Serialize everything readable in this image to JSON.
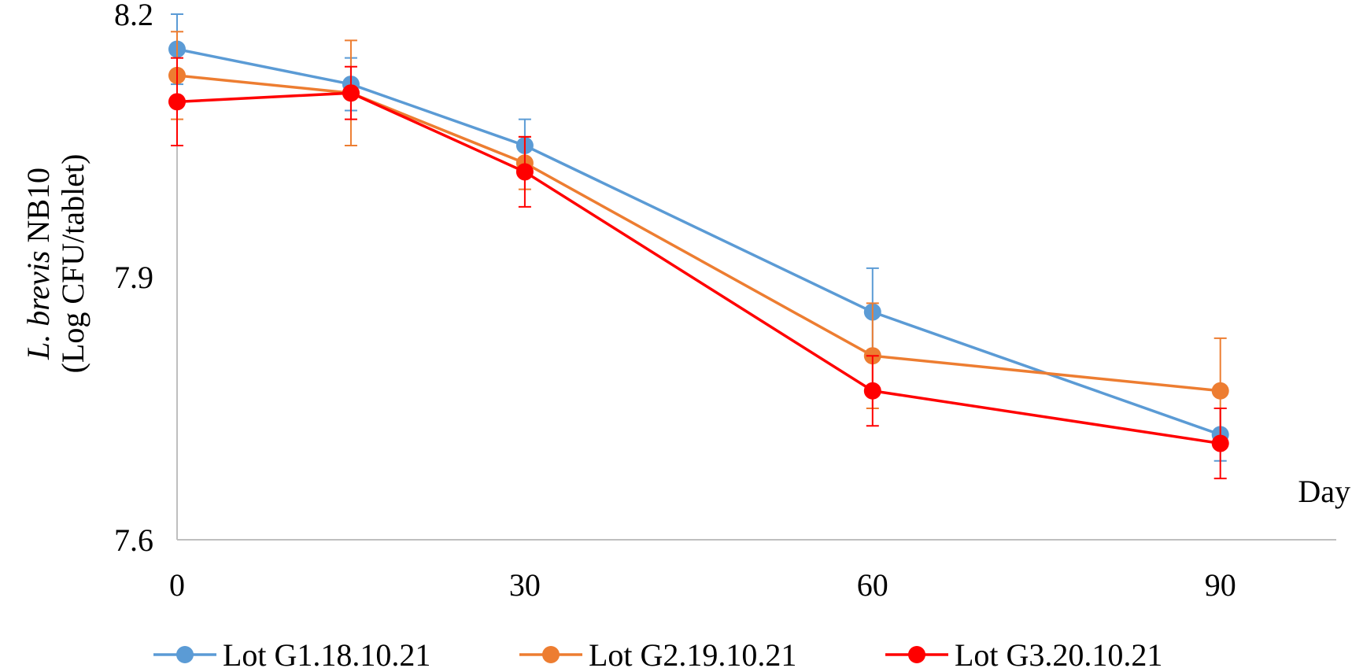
{
  "chart_data": {
    "type": "line",
    "title": "",
    "xlabel": "Day",
    "ylabel_italic": "L. brevis",
    "ylabel_rest": " NB10",
    "ylabel_line2": "(Log CFU/tablet)",
    "x_ticks": [
      0,
      30,
      60,
      90
    ],
    "y_ticks": [
      7.6,
      7.9,
      8.2
    ],
    "y_tick_labels": [
      "7.6",
      "7.9",
      "8.2"
    ],
    "x_tick_labels": [
      "0",
      "30",
      "60",
      "90"
    ],
    "xlim": [
      0,
      100
    ],
    "ylim": [
      7.6,
      8.2
    ],
    "grid": false,
    "legend_position": "bottom",
    "x": [
      0,
      15,
      30,
      60,
      90
    ],
    "series": [
      {
        "name": "Lot G1.18.10.21",
        "color": "#5B9BD5",
        "values": [
          8.16,
          8.12,
          8.05,
          7.86,
          7.72
        ],
        "error": [
          0.04,
          0.03,
          0.03,
          0.05,
          0.03
        ]
      },
      {
        "name": "Lot G2.19.10.21",
        "color": "#ED7D31",
        "values": [
          8.13,
          8.11,
          8.03,
          7.81,
          7.77
        ],
        "error": [
          0.05,
          0.06,
          0.03,
          0.06,
          0.06
        ]
      },
      {
        "name": "Lot G3.20.10.21",
        "color": "#FF0000",
        "values": [
          8.1,
          8.11,
          8.02,
          7.77,
          7.71
        ],
        "error": [
          0.05,
          0.03,
          0.04,
          0.04,
          0.04
        ]
      }
    ]
  }
}
